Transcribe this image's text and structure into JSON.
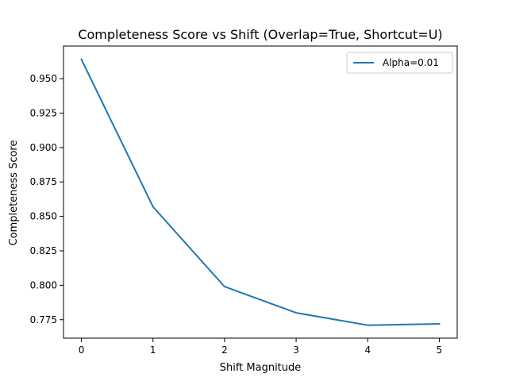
{
  "chart_data": {
    "type": "line",
    "title": "Completeness Score vs Shift (Overlap=True, Shortcut=U)",
    "xlabel": "Shift Magnitude",
    "ylabel": "Completeness Score",
    "x": [
      0,
      1,
      2,
      3,
      4,
      5
    ],
    "series": [
      {
        "name": "Alpha=0.01",
        "color": "#1f77b4",
        "values": [
          0.964,
          0.857,
          0.799,
          0.78,
          0.771,
          0.772
        ]
      }
    ],
    "xticks": [
      "0",
      "1",
      "2",
      "3",
      "4",
      "5"
    ],
    "yticks": [
      "0.775",
      "0.800",
      "0.825",
      "0.850",
      "0.875",
      "0.900",
      "0.925",
      "0.950"
    ],
    "xlim": [
      -0.25,
      5.25
    ],
    "ylim": [
      0.7616,
      0.9737
    ],
    "grid": false,
    "legend_position": "top-right"
  }
}
